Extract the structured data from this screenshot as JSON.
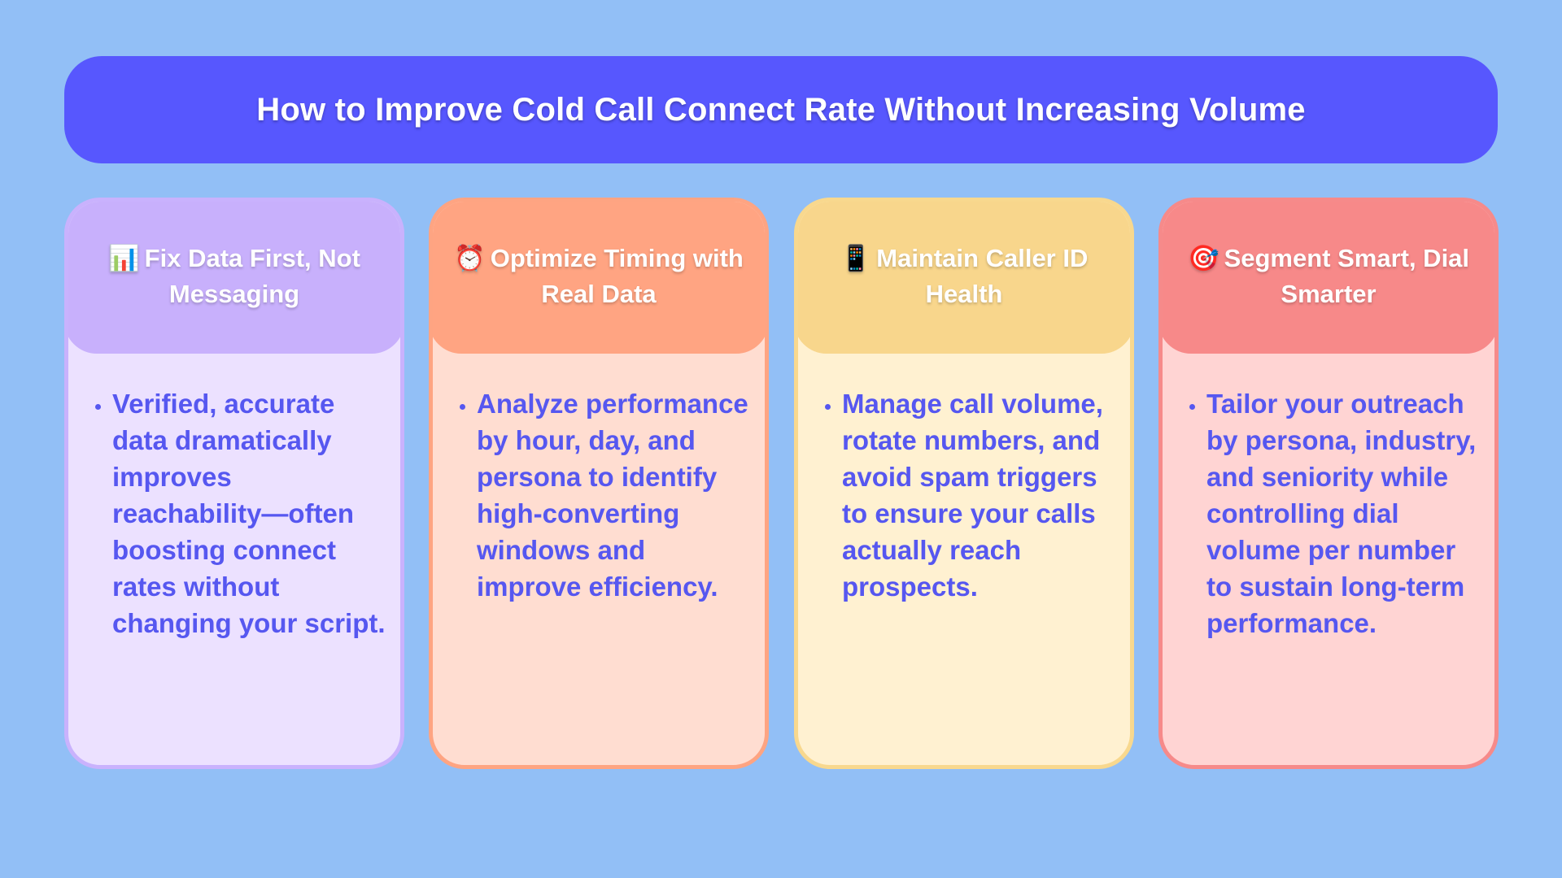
{
  "title": "How to Improve Cold Call Connect Rate Without Increasing Volume",
  "colors": {
    "background": "#92bff6",
    "banner": "#5757fe",
    "body_text": "#5657f0"
  },
  "cards": [
    {
      "icon": "bar-chart-icon",
      "emoji": "📊",
      "heading": "Fix Data First, Not Messaging",
      "bullet": "Verified, accurate data dramatically improves reachability—often boosting connect rates without changing your script.",
      "header_color": "#c8b0fc",
      "body_color": "#ece1ff"
    },
    {
      "icon": "alarm-clock-icon",
      "emoji": "⏰",
      "heading": "Optimize Timing with Real Data",
      "bullet": "Analyze performance by hour, day, and persona to identify high-converting windows and improve efficiency.",
      "header_color": "#ffa482",
      "body_color": "#ffddd1"
    },
    {
      "icon": "mobile-phone-icon",
      "emoji": "📱",
      "heading": "Maintain Caller ID Health",
      "bullet": "Manage call volume, rotate numbers, and avoid spam triggers to ensure your calls actually reach prospects.",
      "header_color": "#f8d68c",
      "body_color": "#fff1d1"
    },
    {
      "icon": "target-icon",
      "emoji": "🎯",
      "heading": "Segment Smart, Dial Smarter",
      "bullet": "Tailor your outreach by persona, industry, and seniority while controlling dial volume per number to sustain long-term performance.",
      "header_color": "#f78989",
      "body_color": "#ffd4d3"
    }
  ]
}
